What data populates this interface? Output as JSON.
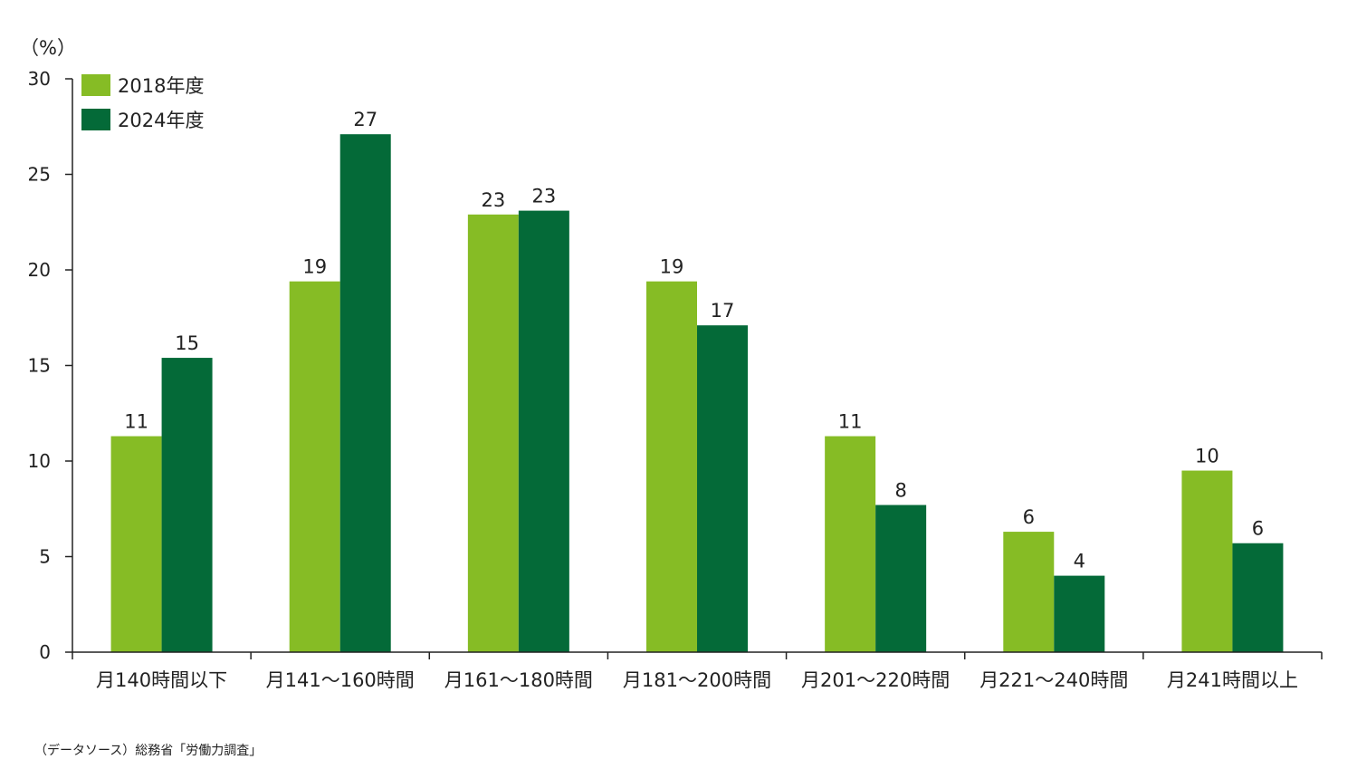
{
  "chart_data": {
    "type": "bar",
    "ylabel": "（%）",
    "ylim": [
      0,
      30
    ],
    "yticks": [
      0,
      5,
      10,
      15,
      20,
      25,
      30
    ],
    "categories": [
      "月140時間以下",
      "月141～160時間",
      "月161～180時間",
      "月181～200時間",
      "月201～220時間",
      "月221～240時間",
      "月241時間以上"
    ],
    "series": [
      {
        "name": "2018年度",
        "color": "#86bc25",
        "values": [
          11.3,
          19.4,
          22.9,
          19.4,
          11.3,
          6.3,
          9.5
        ],
        "labels": [
          "11",
          "19",
          "23",
          "19",
          "11",
          "6",
          "10"
        ]
      },
      {
        "name": "2024年度",
        "color": "#046a38",
        "values": [
          15.4,
          27.1,
          23.1,
          17.1,
          7.7,
          4.0,
          5.7
        ],
        "labels": [
          "15",
          "27",
          "23",
          "17",
          "8",
          "4",
          "6"
        ]
      }
    ],
    "legend_position": "top-left",
    "grid": false
  },
  "source": "（データソース）総務省「労働力調査」"
}
